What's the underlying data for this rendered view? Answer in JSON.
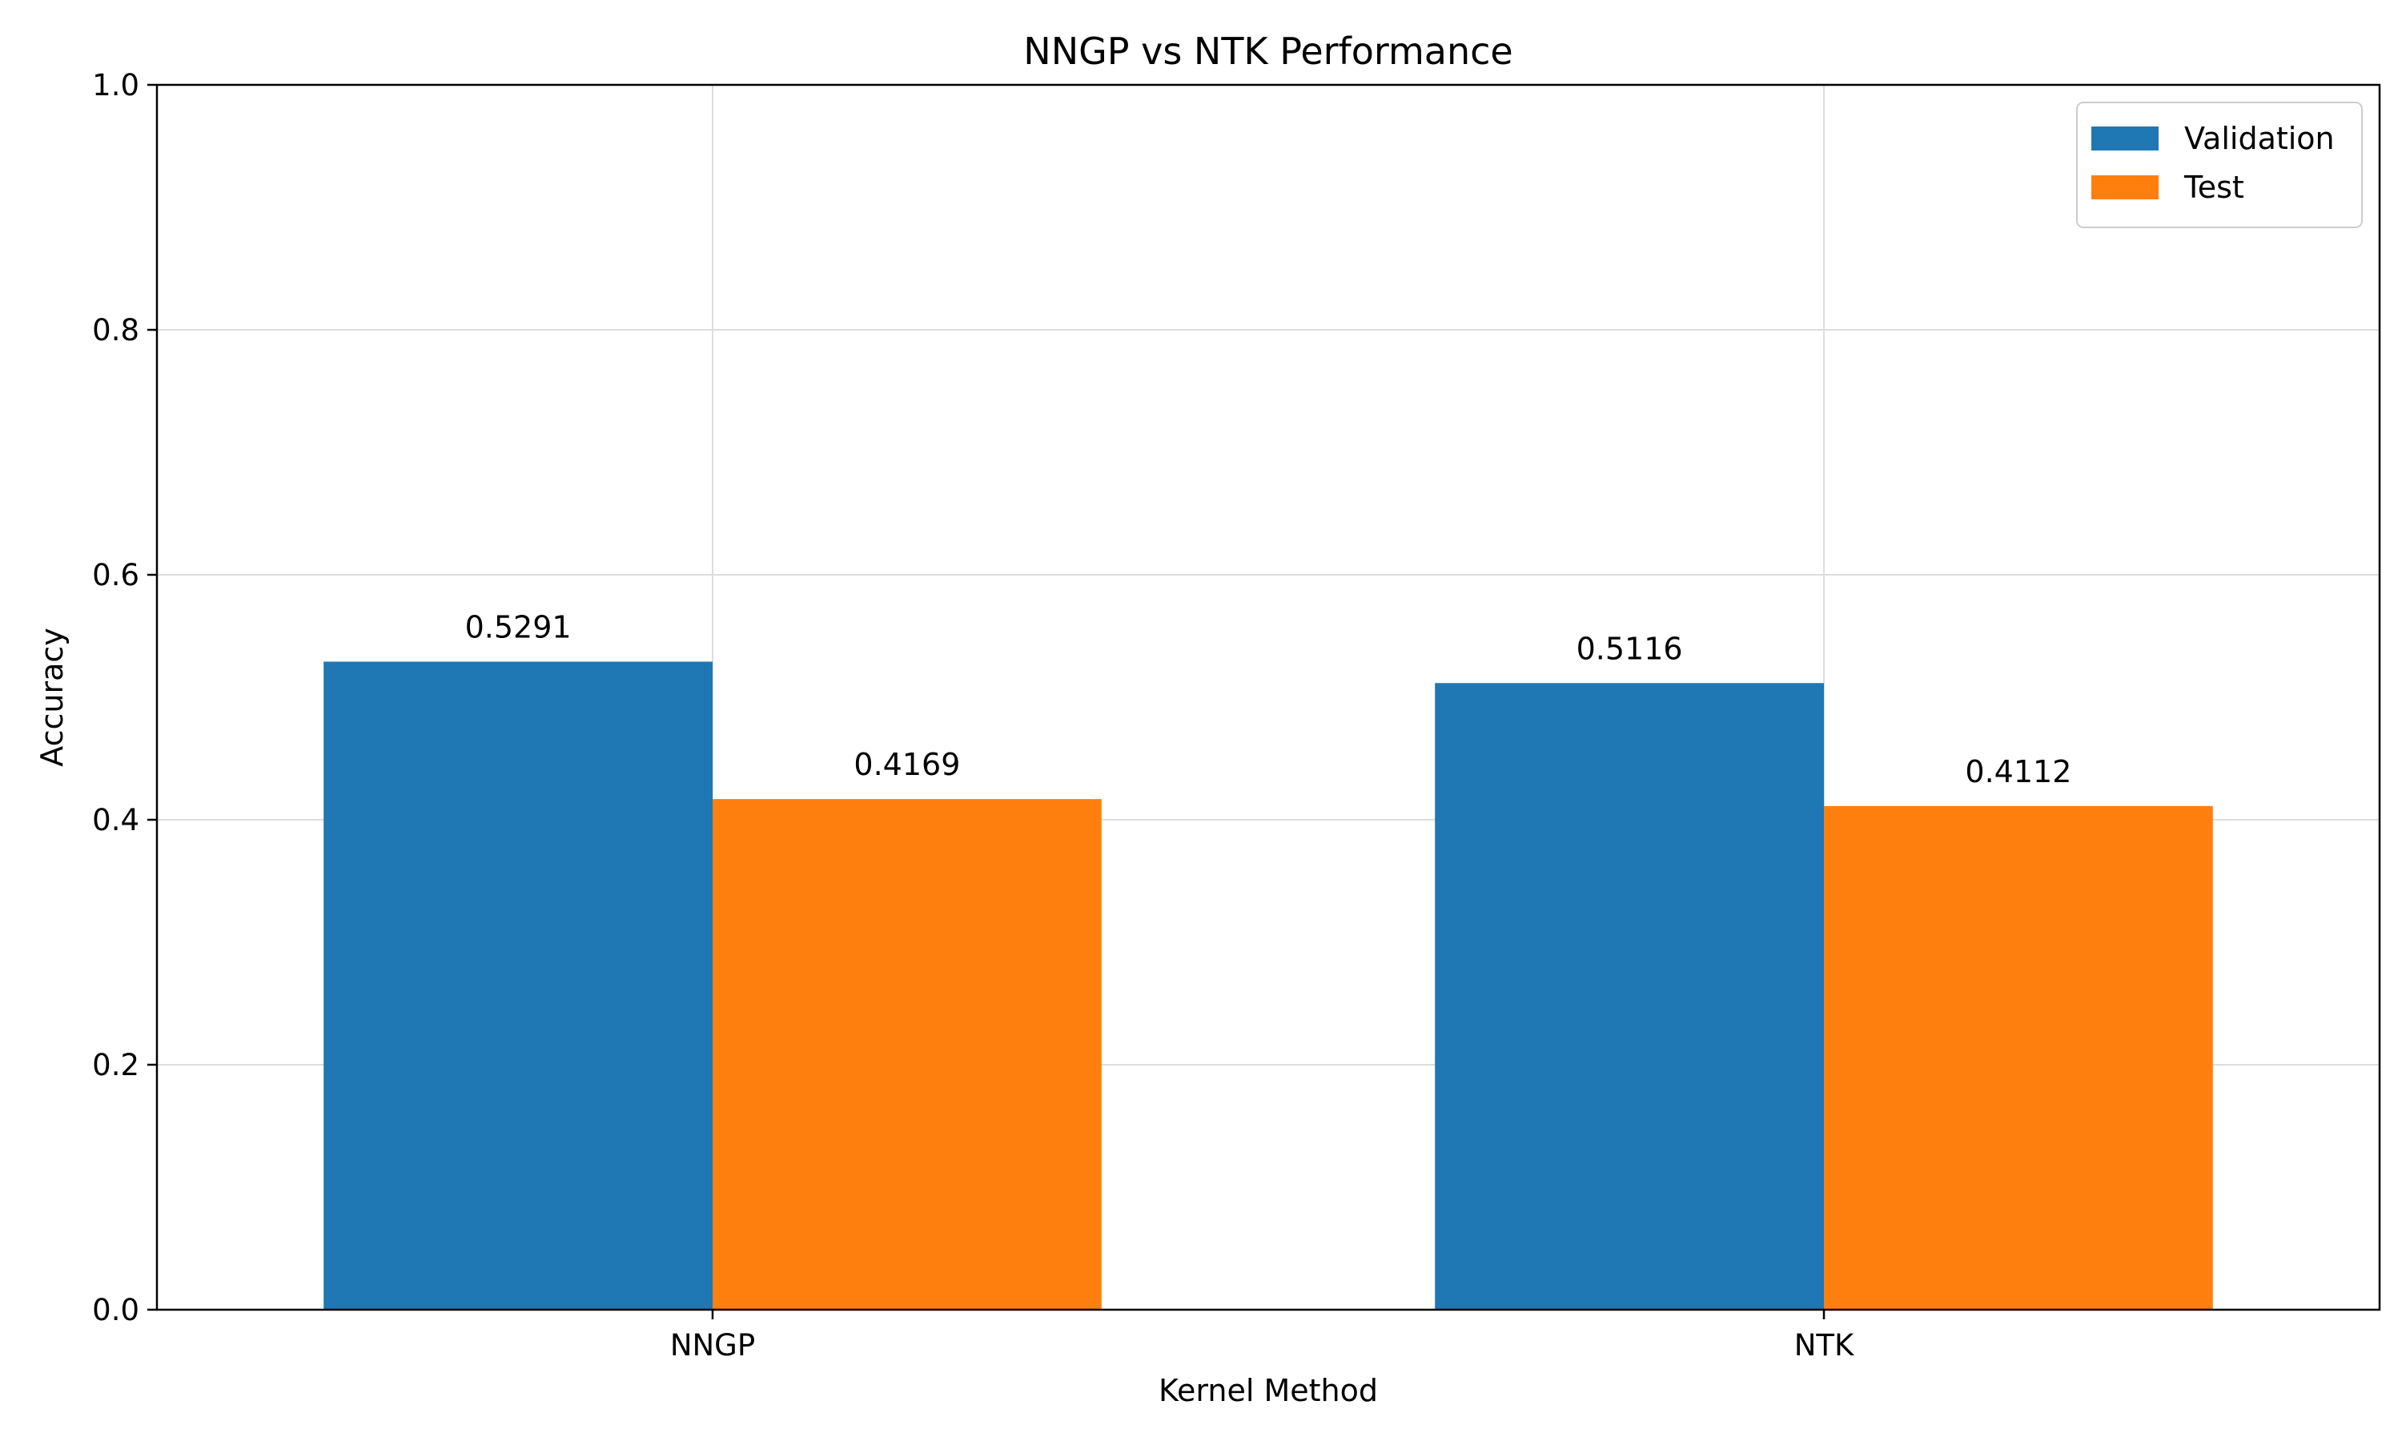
{
  "chart_data": {
    "type": "bar",
    "title": "NNGP vs NTK Performance",
    "xlabel": "Kernel Method",
    "ylabel": "Accuracy",
    "categories": [
      "NNGP",
      "NTK"
    ],
    "series": [
      {
        "name": "Validation",
        "color": "#1f77b4",
        "values": [
          0.5291,
          0.5116
        ],
        "labels": [
          "0.5291",
          "0.5116"
        ]
      },
      {
        "name": "Test",
        "color": "#ff7f0e",
        "values": [
          0.4169,
          0.4112
        ],
        "labels": [
          "0.4169",
          "0.4112"
        ]
      }
    ],
    "ylim": [
      0,
      1.0
    ],
    "yticks": [
      "0.0",
      "0.2",
      "0.4",
      "0.6",
      "0.8",
      "1.0"
    ],
    "grid": true,
    "legend_position": "top-right"
  }
}
